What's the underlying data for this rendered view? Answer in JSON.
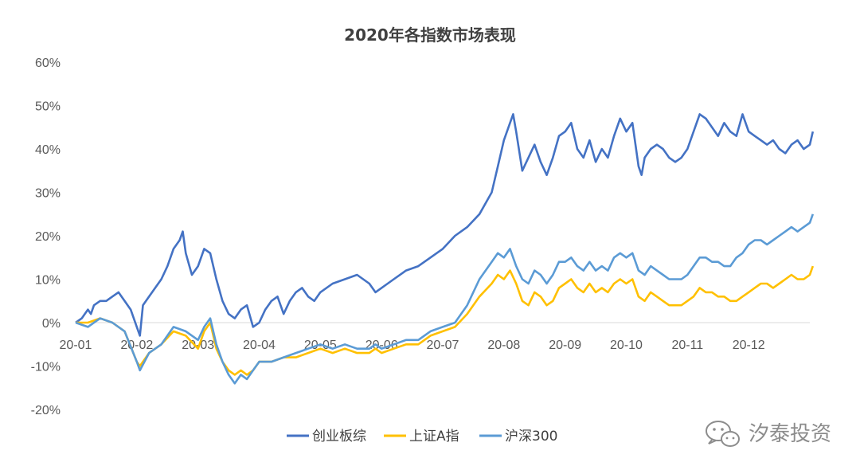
{
  "chart_data": {
    "type": "line",
    "title": "2020年各指数市场表现",
    "xlabel": "",
    "ylabel": "",
    "x_ticks": [
      "20-01",
      "20-02",
      "20-03",
      "20-04",
      "20-05",
      "20-06",
      "20-07",
      "20-08",
      "20-09",
      "20-10",
      "20-11",
      "20-12"
    ],
    "y_ticks": [
      "60%",
      "50%",
      "40%",
      "30%",
      "20%",
      "10%",
      "0%",
      "-10%",
      "-20%"
    ],
    "ylim": [
      -20,
      60
    ],
    "xlim": [
      0,
      12
    ],
    "grid": false,
    "legend_position": "bottom",
    "series": [
      {
        "name": "创业板综",
        "color": "#4472C4",
        "points": [
          [
            0,
            0
          ],
          [
            0.1,
            1
          ],
          [
            0.15,
            2
          ],
          [
            0.2,
            3
          ],
          [
            0.25,
            2
          ],
          [
            0.3,
            4
          ],
          [
            0.4,
            5
          ],
          [
            0.5,
            5
          ],
          [
            0.6,
            6
          ],
          [
            0.7,
            7
          ],
          [
            0.8,
            5
          ],
          [
            0.9,
            3
          ],
          [
            1.0,
            -1
          ],
          [
            1.05,
            -3
          ],
          [
            1.1,
            4
          ],
          [
            1.2,
            6
          ],
          [
            1.3,
            8
          ],
          [
            1.4,
            10
          ],
          [
            1.5,
            13
          ],
          [
            1.6,
            17
          ],
          [
            1.7,
            19
          ],
          [
            1.75,
            21
          ],
          [
            1.8,
            16
          ],
          [
            1.9,
            11
          ],
          [
            2.0,
            13
          ],
          [
            2.1,
            17
          ],
          [
            2.2,
            16
          ],
          [
            2.3,
            10
          ],
          [
            2.4,
            5
          ],
          [
            2.5,
            2
          ],
          [
            2.6,
            1
          ],
          [
            2.7,
            3
          ],
          [
            2.8,
            4
          ],
          [
            2.9,
            -1
          ],
          [
            3.0,
            0
          ],
          [
            3.1,
            3
          ],
          [
            3.2,
            5
          ],
          [
            3.3,
            6
          ],
          [
            3.4,
            2
          ],
          [
            3.5,
            5
          ],
          [
            3.6,
            7
          ],
          [
            3.7,
            8
          ],
          [
            3.8,
            6
          ],
          [
            3.9,
            5
          ],
          [
            4.0,
            7
          ],
          [
            4.2,
            9
          ],
          [
            4.4,
            10
          ],
          [
            4.6,
            11
          ],
          [
            4.8,
            9
          ],
          [
            4.9,
            7
          ],
          [
            5.0,
            8
          ],
          [
            5.1,
            9
          ],
          [
            5.2,
            10
          ],
          [
            5.4,
            12
          ],
          [
            5.6,
            13
          ],
          [
            5.8,
            15
          ],
          [
            6.0,
            17
          ],
          [
            6.2,
            20
          ],
          [
            6.4,
            22
          ],
          [
            6.6,
            25
          ],
          [
            6.8,
            30
          ],
          [
            6.9,
            36
          ],
          [
            7.0,
            42
          ],
          [
            7.1,
            46
          ],
          [
            7.15,
            48
          ],
          [
            7.2,
            44
          ],
          [
            7.3,
            35
          ],
          [
            7.4,
            38
          ],
          [
            7.5,
            41
          ],
          [
            7.6,
            37
          ],
          [
            7.7,
            34
          ],
          [
            7.8,
            38
          ],
          [
            7.9,
            43
          ],
          [
            8.0,
            44
          ],
          [
            8.1,
            46
          ],
          [
            8.2,
            40
          ],
          [
            8.3,
            38
          ],
          [
            8.4,
            42
          ],
          [
            8.5,
            37
          ],
          [
            8.6,
            40
          ],
          [
            8.7,
            38
          ],
          [
            8.8,
            43
          ],
          [
            8.9,
            47
          ],
          [
            9.0,
            44
          ],
          [
            9.1,
            46
          ],
          [
            9.2,
            36
          ],
          [
            9.25,
            34
          ],
          [
            9.3,
            38
          ],
          [
            9.4,
            40
          ],
          [
            9.5,
            41
          ],
          [
            9.6,
            40
          ],
          [
            9.7,
            38
          ],
          [
            9.8,
            37
          ],
          [
            9.9,
            38
          ],
          [
            10.0,
            40
          ],
          [
            10.1,
            44
          ],
          [
            10.2,
            48
          ],
          [
            10.3,
            47
          ],
          [
            10.4,
            45
          ],
          [
            10.5,
            43
          ],
          [
            10.6,
            46
          ],
          [
            10.7,
            44
          ],
          [
            10.8,
            43
          ],
          [
            10.9,
            48
          ],
          [
            11.0,
            44
          ],
          [
            11.1,
            43
          ],
          [
            11.2,
            42
          ],
          [
            11.3,
            41
          ],
          [
            11.4,
            42
          ],
          [
            11.5,
            40
          ],
          [
            11.6,
            39
          ],
          [
            11.7,
            41
          ],
          [
            11.8,
            42
          ],
          [
            11.9,
            40
          ],
          [
            12.0,
            41
          ],
          [
            12.05,
            44
          ]
        ]
      },
      {
        "name": "上证A指",
        "color": "#FFC000",
        "points": [
          [
            0,
            0
          ],
          [
            0.2,
            0
          ],
          [
            0.4,
            1
          ],
          [
            0.6,
            0
          ],
          [
            0.8,
            -2
          ],
          [
            1.0,
            -9
          ],
          [
            1.05,
            -10
          ],
          [
            1.2,
            -7
          ],
          [
            1.4,
            -5
          ],
          [
            1.6,
            -2
          ],
          [
            1.8,
            -3
          ],
          [
            2.0,
            -6
          ],
          [
            2.1,
            -2
          ],
          [
            2.2,
            0
          ],
          [
            2.3,
            -6
          ],
          [
            2.4,
            -9
          ],
          [
            2.5,
            -11
          ],
          [
            2.6,
            -12
          ],
          [
            2.7,
            -11
          ],
          [
            2.8,
            -12
          ],
          [
            2.9,
            -11
          ],
          [
            3.0,
            -9
          ],
          [
            3.2,
            -9
          ],
          [
            3.4,
            -8
          ],
          [
            3.6,
            -8
          ],
          [
            3.8,
            -7
          ],
          [
            4.0,
            -6
          ],
          [
            4.2,
            -7
          ],
          [
            4.4,
            -6
          ],
          [
            4.6,
            -7
          ],
          [
            4.8,
            -7
          ],
          [
            4.9,
            -6
          ],
          [
            5.0,
            -7
          ],
          [
            5.2,
            -6
          ],
          [
            5.4,
            -5
          ],
          [
            5.6,
            -5
          ],
          [
            5.8,
            -3
          ],
          [
            6.0,
            -2
          ],
          [
            6.2,
            -1
          ],
          [
            6.4,
            2
          ],
          [
            6.6,
            6
          ],
          [
            6.8,
            9
          ],
          [
            6.9,
            11
          ],
          [
            7.0,
            10
          ],
          [
            7.1,
            12
          ],
          [
            7.2,
            9
          ],
          [
            7.3,
            5
          ],
          [
            7.4,
            4
          ],
          [
            7.5,
            7
          ],
          [
            7.6,
            6
          ],
          [
            7.7,
            4
          ],
          [
            7.8,
            5
          ],
          [
            7.9,
            8
          ],
          [
            8.0,
            9
          ],
          [
            8.1,
            10
          ],
          [
            8.2,
            8
          ],
          [
            8.3,
            7
          ],
          [
            8.4,
            9
          ],
          [
            8.5,
            7
          ],
          [
            8.6,
            8
          ],
          [
            8.7,
            7
          ],
          [
            8.8,
            9
          ],
          [
            8.9,
            10
          ],
          [
            9.0,
            9
          ],
          [
            9.1,
            10
          ],
          [
            9.2,
            6
          ],
          [
            9.3,
            5
          ],
          [
            9.4,
            7
          ],
          [
            9.5,
            6
          ],
          [
            9.6,
            5
          ],
          [
            9.7,
            4
          ],
          [
            9.8,
            4
          ],
          [
            9.9,
            4
          ],
          [
            10.0,
            5
          ],
          [
            10.1,
            6
          ],
          [
            10.2,
            8
          ],
          [
            10.3,
            7
          ],
          [
            10.4,
            7
          ],
          [
            10.5,
            6
          ],
          [
            10.6,
            6
          ],
          [
            10.7,
            5
          ],
          [
            10.8,
            5
          ],
          [
            10.9,
            6
          ],
          [
            11.0,
            7
          ],
          [
            11.1,
            8
          ],
          [
            11.2,
            9
          ],
          [
            11.3,
            9
          ],
          [
            11.4,
            8
          ],
          [
            11.5,
            9
          ],
          [
            11.6,
            10
          ],
          [
            11.7,
            11
          ],
          [
            11.8,
            10
          ],
          [
            11.9,
            10
          ],
          [
            12.0,
            11
          ],
          [
            12.05,
            13
          ]
        ]
      },
      {
        "name": "沪深300",
        "color": "#5B9BD5",
        "points": [
          [
            0,
            0
          ],
          [
            0.2,
            -1
          ],
          [
            0.4,
            1
          ],
          [
            0.6,
            0
          ],
          [
            0.8,
            -2
          ],
          [
            1.0,
            -9
          ],
          [
            1.05,
            -11
          ],
          [
            1.2,
            -7
          ],
          [
            1.4,
            -5
          ],
          [
            1.6,
            -1
          ],
          [
            1.8,
            -2
          ],
          [
            2.0,
            -4
          ],
          [
            2.1,
            -1
          ],
          [
            2.2,
            1
          ],
          [
            2.3,
            -5
          ],
          [
            2.4,
            -9
          ],
          [
            2.5,
            -12
          ],
          [
            2.6,
            -14
          ],
          [
            2.7,
            -12
          ],
          [
            2.8,
            -13
          ],
          [
            2.9,
            -11
          ],
          [
            3.0,
            -9
          ],
          [
            3.2,
            -9
          ],
          [
            3.4,
            -8
          ],
          [
            3.6,
            -7
          ],
          [
            3.8,
            -6
          ],
          [
            4.0,
            -5
          ],
          [
            4.2,
            -6
          ],
          [
            4.4,
            -5
          ],
          [
            4.6,
            -6
          ],
          [
            4.8,
            -6
          ],
          [
            4.9,
            -5
          ],
          [
            5.0,
            -6
          ],
          [
            5.2,
            -5
          ],
          [
            5.4,
            -4
          ],
          [
            5.6,
            -4
          ],
          [
            5.8,
            -2
          ],
          [
            6.0,
            -1
          ],
          [
            6.2,
            0
          ],
          [
            6.4,
            4
          ],
          [
            6.6,
            10
          ],
          [
            6.8,
            14
          ],
          [
            6.9,
            16
          ],
          [
            7.0,
            15
          ],
          [
            7.1,
            17
          ],
          [
            7.2,
            13
          ],
          [
            7.3,
            10
          ],
          [
            7.4,
            9
          ],
          [
            7.5,
            12
          ],
          [
            7.6,
            11
          ],
          [
            7.7,
            9
          ],
          [
            7.8,
            11
          ],
          [
            7.9,
            14
          ],
          [
            8.0,
            14
          ],
          [
            8.1,
            15
          ],
          [
            8.2,
            13
          ],
          [
            8.3,
            12
          ],
          [
            8.4,
            14
          ],
          [
            8.5,
            12
          ],
          [
            8.6,
            13
          ],
          [
            8.7,
            12
          ],
          [
            8.8,
            15
          ],
          [
            8.9,
            16
          ],
          [
            9.0,
            15
          ],
          [
            9.1,
            16
          ],
          [
            9.2,
            12
          ],
          [
            9.3,
            11
          ],
          [
            9.4,
            13
          ],
          [
            9.5,
            12
          ],
          [
            9.6,
            11
          ],
          [
            9.7,
            10
          ],
          [
            9.8,
            10
          ],
          [
            9.9,
            10
          ],
          [
            10.0,
            11
          ],
          [
            10.1,
            13
          ],
          [
            10.2,
            15
          ],
          [
            10.3,
            15
          ],
          [
            10.4,
            14
          ],
          [
            10.5,
            14
          ],
          [
            10.6,
            13
          ],
          [
            10.7,
            13
          ],
          [
            10.8,
            15
          ],
          [
            10.9,
            16
          ],
          [
            11.0,
            18
          ],
          [
            11.1,
            19
          ],
          [
            11.2,
            19
          ],
          [
            11.3,
            18
          ],
          [
            11.4,
            19
          ],
          [
            11.5,
            20
          ],
          [
            11.6,
            21
          ],
          [
            11.7,
            22
          ],
          [
            11.8,
            21
          ],
          [
            11.9,
            22
          ],
          [
            12.0,
            23
          ],
          [
            12.05,
            25
          ]
        ]
      }
    ]
  },
  "watermark": {
    "icon": "wechat-icon",
    "text": "汐泰投资"
  }
}
